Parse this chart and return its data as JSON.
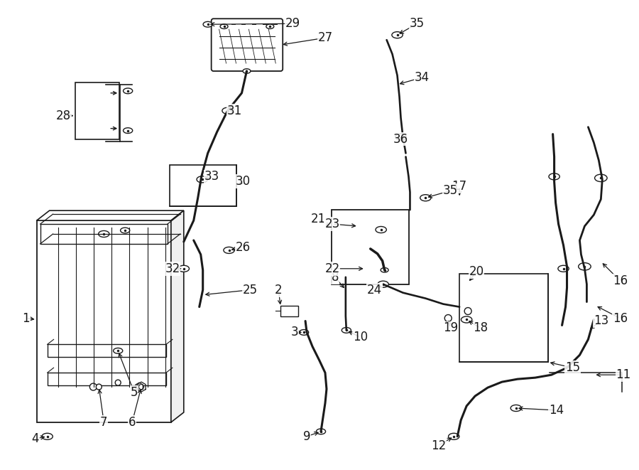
{
  "bg_color": "#ffffff",
  "line_color": "#1a1a1a",
  "lw_main": 1.5,
  "lw_hose": 2.2,
  "lw_thin": 0.9,
  "fig_width": 9.0,
  "fig_height": 6.61,
  "dpi": 100
}
